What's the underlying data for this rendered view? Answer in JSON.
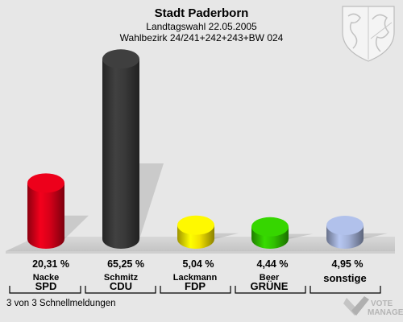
{
  "header": {
    "title": "Stadt Paderborn",
    "election": "Landtagswahl 22.05.2005",
    "district": "Wahlbezirk 24/241+242+243+BW 024"
  },
  "footer": {
    "status": "3 von 3 Schnellmeldungen",
    "brand_line1": "VOTE",
    "brand_line2": "MANAGER"
  },
  "chart_data": {
    "type": "bar",
    "categories": [
      "SPD",
      "CDU",
      "FDP",
      "GRÜNE",
      "sonstige"
    ],
    "candidates": [
      "Nacke",
      "Schmitz",
      "Lackmann",
      "Beer",
      ""
    ],
    "values": [
      20.31,
      65.25,
      5.04,
      4.44,
      4.95
    ],
    "value_labels": [
      "20,31 %",
      "65,25 %",
      "5,04 %",
      "4,44 %",
      "4,95 %"
    ],
    "colors": [
      "#e2001a",
      "#3c3c3c",
      "#ffed00",
      "#33cc00",
      "#a9b8e0"
    ],
    "ylim": [
      0,
      70
    ]
  }
}
